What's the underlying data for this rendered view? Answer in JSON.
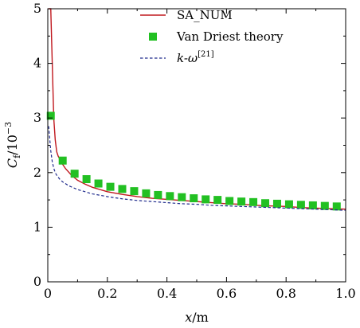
{
  "chart_data": {
    "type": "line",
    "title": "",
    "xlabel_var": "x",
    "xlabel_unit": "/m",
    "ylabel_main": "C",
    "ylabel_sub": "f",
    "ylabel_unit": "/10",
    "ylabel_exp": "−3",
    "xlim": [
      0,
      1.0
    ],
    "ylim": [
      0,
      5
    ],
    "xticks": [
      0,
      0.2,
      0.4,
      0.6,
      0.8,
      1.0
    ],
    "xtick_labels": [
      "0",
      "0.2",
      "0.4",
      "0.6",
      "0.8",
      "1.0"
    ],
    "yticks": [
      0,
      1,
      2,
      3,
      4,
      5
    ],
    "ytick_labels": [
      "0",
      "1",
      "2",
      "3",
      "4",
      "5"
    ],
    "grid": false,
    "legend_position": "top-right",
    "series": [
      {
        "name": "SA_NUM",
        "kind": "line",
        "style": "solid",
        "color": "#c0181e",
        "x": [
          0.002,
          0.004,
          0.006,
          0.01,
          0.015,
          0.02,
          0.025,
          0.03,
          0.035,
          0.04,
          0.05,
          0.06,
          0.08,
          0.1,
          0.125,
          0.15,
          0.2,
          0.25,
          0.3,
          0.35,
          0.4,
          0.45,
          0.5,
          0.55,
          0.6,
          0.65,
          0.7,
          0.75,
          0.8,
          0.85,
          0.9,
          0.95,
          1.0
        ],
        "y": [
          5.0,
          5.0,
          5.0,
          5.0,
          4.0,
          3.0,
          2.6,
          2.38,
          2.3,
          2.25,
          2.15,
          2.07,
          1.95,
          1.86,
          1.79,
          1.73,
          1.65,
          1.6,
          1.56,
          1.53,
          1.51,
          1.49,
          1.47,
          1.45,
          1.43,
          1.42,
          1.4,
          1.39,
          1.38,
          1.36,
          1.35,
          1.34,
          1.33
        ]
      },
      {
        "name": "Van Driest theory",
        "kind": "marker",
        "style": "square",
        "color": "#22c022",
        "x": [
          0.01,
          0.05,
          0.09,
          0.13,
          0.17,
          0.21,
          0.25,
          0.29,
          0.33,
          0.37,
          0.41,
          0.45,
          0.49,
          0.53,
          0.57,
          0.61,
          0.65,
          0.69,
          0.73,
          0.77,
          0.81,
          0.85,
          0.89,
          0.93,
          0.97
        ],
        "y": [
          3.04,
          2.22,
          1.98,
          1.88,
          1.8,
          1.74,
          1.7,
          1.66,
          1.62,
          1.59,
          1.57,
          1.55,
          1.53,
          1.51,
          1.5,
          1.48,
          1.47,
          1.46,
          1.44,
          1.43,
          1.42,
          1.41,
          1.4,
          1.39,
          1.38
        ]
      },
      {
        "name_main": "k-ω",
        "name_ref": "[21]",
        "kind": "line",
        "style": "dashed",
        "color": "#1f2a8c",
        "x": [
          0.003,
          0.006,
          0.01,
          0.015,
          0.02,
          0.025,
          0.03,
          0.04,
          0.05,
          0.07,
          0.1,
          0.15,
          0.2,
          0.25,
          0.3,
          0.35,
          0.4,
          0.45,
          0.5,
          0.55,
          0.6,
          0.65,
          0.7,
          0.75,
          0.8,
          0.85,
          0.9,
          0.95,
          1.0
        ],
        "y": [
          2.85,
          2.65,
          2.4,
          2.2,
          2.08,
          2.0,
          1.95,
          1.88,
          1.83,
          1.76,
          1.69,
          1.61,
          1.56,
          1.52,
          1.49,
          1.47,
          1.45,
          1.43,
          1.42,
          1.4,
          1.39,
          1.38,
          1.37,
          1.36,
          1.35,
          1.34,
          1.33,
          1.32,
          1.31
        ]
      }
    ]
  }
}
